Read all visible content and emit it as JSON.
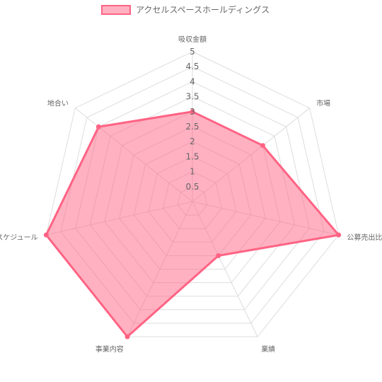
{
  "chart_data": {
    "type": "radar",
    "categories": [
      "吸収金額",
      "市場",
      "公募売出比",
      "業績",
      "事業内容",
      "スケジュール",
      "地合い"
    ],
    "series": [
      {
        "name": "アクセルスペースホールディングス",
        "values": [
          3,
          3,
          5,
          2,
          5,
          5,
          4
        ],
        "color": "#ff6384",
        "fill": "rgba(255, 99, 132, 0.5)"
      }
    ],
    "rlim": [
      0,
      5
    ],
    "ticks": [
      "0.5",
      "1",
      "1.5",
      "2",
      "2.5",
      "3",
      "3.5",
      "4",
      "4.5",
      "5"
    ],
    "tick_values": [
      0.5,
      1,
      1.5,
      2,
      2.5,
      3,
      3.5,
      4,
      4.5,
      5
    ],
    "grid": true,
    "legend_position": "top",
    "grid_color": "#dddddd"
  }
}
